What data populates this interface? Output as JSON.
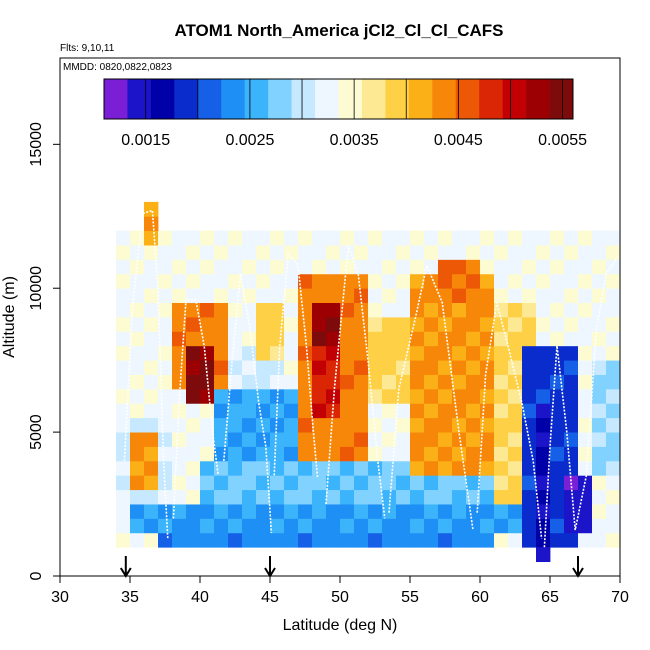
{
  "chart_data": {
    "type": "heatmap",
    "title": "ATOM1 North_America jCl2_Cl_Cl_CAFS",
    "flights_note": "Flts: 9,10,11",
    "dates_note": "MMDD: 0820,0822,0823",
    "xlabel": "Latitude (deg N)",
    "ylabel": "Altitude (m)",
    "xlim": [
      30,
      70
    ],
    "ylim": [
      0,
      18000
    ],
    "x_ticks": [
      30,
      35,
      40,
      45,
      50,
      55,
      60,
      65,
      70
    ],
    "x_tick_labels": [
      "30",
      "35",
      "40",
      "45",
      "50",
      "55",
      "60",
      "65",
      "70"
    ],
    "y_ticks": [
      0,
      5000,
      10000,
      15000
    ],
    "y_tick_labels": [
      "0",
      "5000",
      "10000",
      "15000"
    ],
    "grid": false,
    "colorbar": {
      "min": 0.0011,
      "max": 0.0056,
      "tick_values": [
        0.0015,
        0.0025,
        0.0035,
        0.0045,
        0.0055
      ],
      "tick_labels": [
        "0.0015",
        "0.0025",
        "0.0035",
        "0.0045",
        "0.0055"
      ],
      "colors": [
        "#7a1fd6",
        "#1c14c8",
        "#0000a8",
        "#0a2ccc",
        "#1560e6",
        "#1e90f5",
        "#3cb4fc",
        "#82d2ff",
        "#c6e9ff",
        "#eef7ff",
        "#fdfbd2",
        "#fde994",
        "#fdd046",
        "#fcb017",
        "#f78708",
        "#ec5806",
        "#db2605",
        "#c20003",
        "#9c0002",
        "#7d0b0b"
      ]
    },
    "grid_spec": {
      "lat_start": 34.0,
      "lat_step": 1.0,
      "alt_start": 0,
      "alt_step": 500
    },
    "regions": [
      {
        "lat": [
          34,
          70
        ],
        "alt": [
          1000,
          12000
        ],
        "value": 0.0033
      },
      {
        "lat": [
          37,
          61
        ],
        "alt": [
          1000,
          1500
        ],
        "value": 0.0023
      },
      {
        "lat": [
          35,
          64
        ],
        "alt": [
          1500,
          2500
        ],
        "value": 0.0024
      },
      {
        "lat": [
          40,
          63
        ],
        "alt": [
          2500,
          4000
        ],
        "value": 0.0027
      },
      {
        "lat": [
          34,
          38
        ],
        "alt": [
          2500,
          5500
        ],
        "value": 0.0031
      },
      {
        "lat": [
          35,
          37
        ],
        "alt": [
          3000,
          5000
        ],
        "value": 0.0043
      },
      {
        "lat": [
          38,
          42
        ],
        "alt": [
          6500,
          9500
        ],
        "value": 0.0044
      },
      {
        "lat": [
          39,
          41
        ],
        "alt": [
          6000,
          8000
        ],
        "value": 0.0054
      },
      {
        "lat": [
          41,
          47
        ],
        "alt": [
          4000,
          6500
        ],
        "value": 0.0025
      },
      {
        "lat": [
          42,
          46
        ],
        "alt": [
          6500,
          8000
        ],
        "value": 0.0031
      },
      {
        "lat": [
          44,
          46
        ],
        "alt": [
          7500,
          9500
        ],
        "value": 0.0039
      },
      {
        "lat": [
          47,
          52
        ],
        "alt": [
          4000,
          10500
        ],
        "value": 0.0044
      },
      {
        "lat": [
          48,
          50
        ],
        "alt": [
          8000,
          9500
        ],
        "value": 0.0053
      },
      {
        "lat": [
          48,
          50
        ],
        "alt": [
          5500,
          8000
        ],
        "value": 0.0049
      },
      {
        "lat": [
          52,
          55
        ],
        "alt": [
          6000,
          9000
        ],
        "value": 0.0039
      },
      {
        "lat": [
          55,
          61
        ],
        "alt": [
          3500,
          10500
        ],
        "value": 0.0043
      },
      {
        "lat": [
          57,
          60
        ],
        "alt": [
          9500,
          11000
        ],
        "value": 0.0045
      },
      {
        "lat": [
          61,
          64
        ],
        "alt": [
          2500,
          9500
        ],
        "value": 0.0038
      },
      {
        "lat": [
          63,
          67
        ],
        "alt": [
          1000,
          8000
        ],
        "value": 0.0019
      },
      {
        "lat": [
          64,
          65
        ],
        "alt": [
          500,
          6000
        ],
        "value": 0.0016
      },
      {
        "lat": [
          66,
          68
        ],
        "alt": [
          1500,
          3500
        ],
        "value": 0.0014
      },
      {
        "lat": [
          68,
          70
        ],
        "alt": [
          3500,
          7500
        ],
        "value": 0.0029
      },
      {
        "lat": [
          36,
          37
        ],
        "alt": [
          11500,
          13000
        ],
        "value": 0.0042
      },
      {
        "lat": [
          38,
          61
        ],
        "alt": [
          11000,
          12000
        ],
        "value": 0.0033
      }
    ],
    "flight_tracks": [
      [
        [
          34.6,
          4000
        ],
        [
          35.2,
          9500
        ],
        [
          35.9,
          12600
        ],
        [
          36.6,
          12700
        ],
        [
          37.0,
          10000
        ],
        [
          37.4,
          4000
        ],
        [
          37.7,
          1300
        ]
      ],
      [
        [
          38.1,
          2000
        ],
        [
          38.5,
          6000
        ],
        [
          39.0,
          9600
        ],
        [
          39.7,
          9600
        ],
        [
          40.3,
          8000
        ],
        [
          40.9,
          5000
        ],
        [
          41.3,
          3500
        ]
      ],
      [
        [
          41.7,
          4000
        ],
        [
          42.3,
          7500
        ],
        [
          42.9,
          10500
        ],
        [
          43.6,
          8500
        ],
        [
          44.2,
          6000
        ],
        [
          44.7,
          4500
        ],
        [
          45.1,
          1500
        ]
      ],
      [
        [
          45.3,
          3500
        ],
        [
          45.7,
          8000
        ],
        [
          46.3,
          11200
        ],
        [
          47.0,
          10800
        ],
        [
          47.6,
          8000
        ],
        [
          48.1,
          5000
        ],
        [
          48.4,
          3400
        ]
      ],
      [
        [
          49.0,
          2500
        ],
        [
          49.6,
          6500
        ],
        [
          50.6,
          11500
        ],
        [
          51.3,
          10500
        ],
        [
          52.0,
          7500
        ],
        [
          52.7,
          4000
        ],
        [
          53.2,
          2000
        ]
      ],
      [
        [
          53.5,
          2200
        ],
        [
          54.2,
          6500
        ],
        [
          55.4,
          9000
        ],
        [
          56.2,
          10800
        ],
        [
          57.3,
          9500
        ],
        [
          58.5,
          5000
        ],
        [
          59.5,
          1600
        ]
      ],
      [
        [
          59.8,
          2200
        ],
        [
          60.4,
          7000
        ],
        [
          61.2,
          9500
        ],
        [
          62.0,
          8000
        ],
        [
          63.0,
          6000
        ],
        [
          63.8,
          4000
        ],
        [
          64.4,
          1300
        ]
      ],
      [
        [
          64.6,
          1000
        ],
        [
          65.0,
          4500
        ],
        [
          65.5,
          8000
        ],
        [
          66.2,
          5000
        ],
        [
          66.8,
          1600
        ],
        [
          67.6,
          3500
        ],
        [
          68.3,
          8500
        ],
        [
          69.0,
          10500
        ],
        [
          70.0,
          11200
        ]
      ]
    ],
    "location_markers": [
      {
        "lat": 34.7
      },
      {
        "lat": 45.0
      },
      {
        "lat": 67.0
      }
    ]
  }
}
